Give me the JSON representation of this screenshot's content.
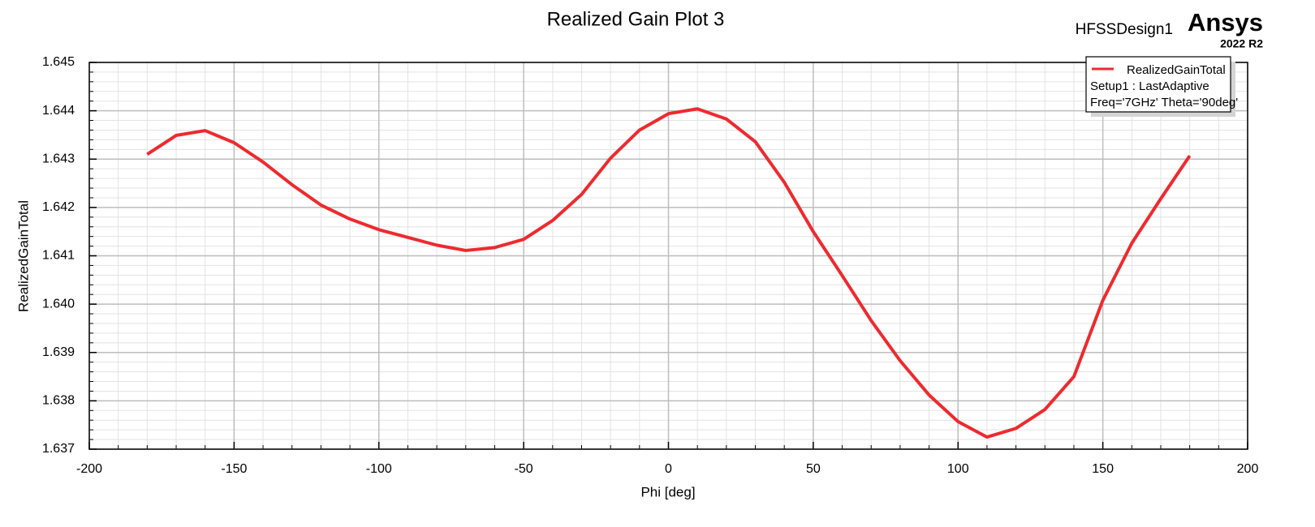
{
  "chart_data": {
    "type": "line",
    "title": "Realized Gain Plot 3",
    "design": "HFSSDesign1",
    "brand": "Ansys",
    "version": "2022 R2",
    "xlabel": "Phi [deg]",
    "ylabel": "RealizedGainTotal",
    "legend_lines": [
      "Setup1 : LastAdaptive",
      "Freq='7GHz' Theta='90deg'"
    ],
    "legend": "top-right",
    "grid": true,
    "x": [
      -180,
      -170,
      -160,
      -150,
      -140,
      -130,
      -120,
      -110,
      -100,
      -90,
      -80,
      -70,
      -60,
      -50,
      -40,
      -30,
      -20,
      -10,
      0,
      10,
      20,
      30,
      40,
      50,
      60,
      70,
      80,
      90,
      100,
      110,
      120,
      130,
      140,
      150,
      160,
      170,
      180
    ],
    "series": [
      {
        "name": "RealizedGainTotal",
        "color": "#ee2a2f",
        "values": [
          1.6431,
          1.64349,
          1.64359,
          1.64334,
          1.64294,
          1.64247,
          1.64205,
          1.64176,
          1.64154,
          1.64138,
          1.64122,
          1.64111,
          1.64117,
          1.64134,
          1.64173,
          1.64227,
          1.64302,
          1.6436,
          1.64394,
          1.64404,
          1.64383,
          1.64336,
          1.64252,
          1.6415,
          1.64059,
          1.63966,
          1.63883,
          1.63812,
          1.63757,
          1.63725,
          1.63743,
          1.63782,
          1.6385,
          1.64008,
          1.64126,
          1.64218,
          1.64307
        ]
      }
    ],
    "xlim": [
      -200,
      200
    ],
    "xticks": [
      -200,
      -150,
      -100,
      -50,
      0,
      50,
      100,
      150,
      200
    ],
    "ylim": [
      1.637,
      1.645
    ],
    "yticks": [
      1.637,
      1.638,
      1.639,
      {
        "value": 1.64,
        "label": "1.640"
      },
      1.641,
      1.642,
      1.643,
      1.644,
      1.645
    ]
  }
}
